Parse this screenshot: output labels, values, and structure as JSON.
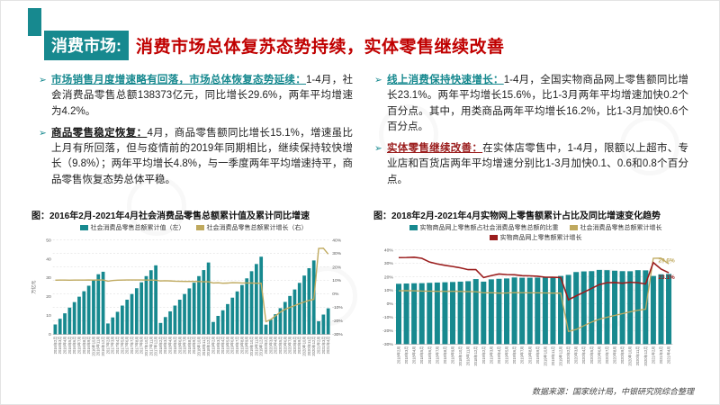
{
  "header": {
    "tag": "消费市场:",
    "title": "消费市场总体复苏态势持续，实体零售继续改善"
  },
  "icons": {
    "bullet_icon": "➢"
  },
  "bullets": {
    "left": [
      {
        "head": "市场销售月度增速略有回落，市场总体恢复态势延续：",
        "body": "1-4月，社会消费品零售总额138373亿元，同比增长29.6%，两年平均增速为4.2%。"
      },
      {
        "head": "商品零售稳定恢复：",
        "body": "4月，商品零售额同比增长15.1%，增速虽比上月有所回落，但与疫情前的2019年同期相比，继续保持较快增长（9.8%）；两年平均增长4.8%，与一季度两年平均增速持平，商品零售恢复态势总体平稳。"
      }
    ],
    "right": [
      {
        "head": "线上消费保持快速增长：",
        "body": "1-4月，全国实物商品网上零售额同比增长23.1%。两年平均增长15.6%，比1-3月两年平均增速加快0.2个百分点。其中，用类商品两年平均增长16.2%，比1-3月加快0.6个百分点。"
      },
      {
        "head": "实体零售继续改善：",
        "body": "在实体店零售中，1-4月，限额以上超市、专业店和百货店两年平均增速分别比1-3月加快0.1、0.6和0.8个百分点。"
      }
    ]
  },
  "footer": {
    "source": "数据来源：国家统计局，中银研究院综合整理"
  },
  "colors": {
    "teal": "#17898f",
    "gold": "#bfa95e",
    "red": "#9a1c1c",
    "title_red": "#c00000"
  },
  "chart_data": [
    {
      "type": "bar",
      "title": "图：2016年2月-2021年4月社会消费品零售总额累计值及累计同比增速",
      "legend": [
        "社会消费品零售总额累计值（左）",
        "社会消费品零售总额累计增长（右）"
      ],
      "unit": "万亿元",
      "bar_axis": {
        "range": [
          0,
          50
        ],
        "ticks": [
          0,
          10,
          20,
          30,
          40,
          50
        ]
      },
      "line_axis": {
        "range": [
          -30,
          40
        ],
        "ticks": [
          40,
          30,
          20,
          10,
          0,
          -10,
          -20,
          -30
        ]
      },
      "categories": [
        "2016年2月",
        "2016年3月",
        "2016年4月",
        "2016年5月",
        "2016年6月",
        "2016年7月",
        "2016年8月",
        "2016年9月",
        "2016年10月",
        "2016年11月",
        "2016年12月",
        "2017年2月",
        "2017年3月",
        "2017年4月",
        "2017年5月",
        "2017年6月",
        "2017年7月",
        "2017年8月",
        "2017年9月",
        "2017年10月",
        "2017年11月",
        "2017年12月",
        "2018年2月",
        "2018年3月",
        "2018年4月",
        "2018年5月",
        "2018年6月",
        "2018年7月",
        "2018年8月",
        "2018年9月",
        "2018年10月",
        "2018年11月",
        "2018年12月",
        "2019年2月",
        "2019年3月",
        "2019年4月",
        "2019年5月",
        "2019年6月",
        "2019年7月",
        "2019年8月",
        "2019年9月",
        "2019年10月",
        "2019年11月",
        "2019年12月",
        "2020年2月",
        "2020年3月",
        "2020年4月",
        "2020年5月",
        "2020年6月",
        "2020年7月",
        "2020年8月",
        "2020年9月",
        "2020年10月",
        "2020年11月",
        "2020年12月",
        "2021年2月",
        "2021年3月",
        "2021年4月"
      ],
      "bars": [
        5.3,
        8.3,
        11.2,
        14.2,
        17.1,
        20.0,
        22.9,
        25.8,
        28.9,
        31.9,
        33.2,
        5.8,
        9.0,
        12.0,
        15.3,
        18.4,
        21.4,
        24.5,
        27.6,
        30.9,
        34.0,
        36.6,
        6.1,
        9.2,
        12.2,
        15.3,
        18.4,
        21.4,
        24.4,
        27.4,
        30.9,
        34.1,
        38.1,
        6.6,
        9.8,
        12.8,
        16.1,
        19.5,
        22.8,
        26.2,
        29.7,
        33.5,
        37.3,
        41.2,
        5.2,
        7.9,
        10.7,
        13.9,
        17.2,
        20.4,
        23.8,
        27.3,
        31.2,
        35.1,
        39.2,
        7.0,
        10.5,
        13.8
      ],
      "line": {
        "name": "社会消费品零售总额累计增长（右）",
        "color": "gold",
        "values": [
          10.2,
          10.3,
          10.3,
          10.2,
          10.3,
          10.3,
          10.3,
          10.4,
          10.3,
          10.4,
          10.4,
          9.5,
          10.0,
          10.2,
          10.3,
          10.4,
          10.4,
          10.4,
          10.4,
          10.3,
          10.3,
          10.2,
          9.7,
          9.8,
          9.7,
          9.5,
          9.4,
          9.3,
          9.3,
          9.3,
          9.2,
          9.1,
          9.0,
          8.2,
          8.3,
          8.0,
          8.1,
          8.4,
          8.3,
          8.2,
          8.2,
          8.1,
          8.0,
          8.0,
          -20.5,
          -19.0,
          -16.2,
          -13.5,
          -11.4,
          -9.9,
          -8.6,
          -7.2,
          -5.9,
          -4.8,
          -3.9,
          33.8,
          33.9,
          29.6
        ]
      }
    },
    {
      "type": "bar",
      "title": "图：2018年2月-2021年4月实物网上零售额累计占比及同比增速变化趋势",
      "legend": [
        "实物商品网上零售额占社会消费品零售总额的比重",
        "社会消费品零售总额累计增长",
        "实物商品网上零售额累计增长"
      ],
      "axis": {
        "range": [
          -30,
          40
        ],
        "ticks": [
          40,
          30,
          20,
          10,
          0,
          -10,
          -20,
          -30
        ]
      },
      "categories": [
        "2018年2月",
        "2018年3月",
        "2018年4月",
        "2018年5月",
        "2018年6月",
        "2018年7月",
        "2018年8月",
        "2018年9月",
        "2018年10月",
        "2018年11月",
        "2018年12月",
        "2019年2月",
        "2019年3月",
        "2019年4月",
        "2019年5月",
        "2019年6月",
        "2019年7月",
        "2019年8月",
        "2019年9月",
        "2019年10月",
        "2019年11月",
        "2019年12月",
        "2020年2月",
        "2020年3月",
        "2020年4月",
        "2020年5月",
        "2020年6月",
        "2020年7月",
        "2020年8月",
        "2020年9月",
        "2020年10月",
        "2020年11月",
        "2020年12月",
        "2021年2月",
        "2021年3月",
        "2021年4月"
      ],
      "bars": [
        14.9,
        15.1,
        15.3,
        15.4,
        15.6,
        15.8,
        16.0,
        16.2,
        16.5,
        16.8,
        18.4,
        16.5,
        18.2,
        18.6,
        18.9,
        19.6,
        19.4,
        19.4,
        19.5,
        19.5,
        20.0,
        20.7,
        21.5,
        23.6,
        24.1,
        24.3,
        25.2,
        25.0,
        24.6,
        24.3,
        24.2,
        25.0,
        24.9,
        20.7,
        21.9,
        22.2
      ],
      "series": [
        {
          "name": "社会消费品零售总额累计增长",
          "color": "gold",
          "values": [
            9.7,
            9.8,
            9.7,
            9.5,
            9.4,
            9.3,
            9.3,
            9.3,
            9.2,
            9.1,
            9.0,
            8.2,
            8.3,
            8.0,
            8.1,
            8.4,
            8.3,
            8.2,
            8.2,
            8.1,
            8.0,
            8.0,
            -20.5,
            -19.0,
            -16.2,
            -13.5,
            -11.4,
            -9.9,
            -8.6,
            -7.2,
            -5.9,
            -4.8,
            -3.9,
            33.8,
            33.9,
            29.6
          ]
        },
        {
          "name": "实物商品网上零售额累计增长",
          "color": "red",
          "values": [
            34.3,
            34.4,
            34.6,
            33.8,
            31.0,
            29.6,
            28.6,
            27.7,
            26.7,
            25.4,
            25.4,
            19.5,
            21.0,
            22.2,
            21.7,
            21.6,
            20.9,
            20.8,
            20.5,
            19.8,
            19.7,
            19.5,
            3.0,
            5.9,
            8.6,
            11.5,
            14.3,
            15.7,
            15.8,
            15.3,
            16.0,
            15.7,
            14.8,
            30.6,
            25.8,
            23.1
          ]
        }
      ],
      "annotations": [
        {
          "text": "29.6%",
          "value": 29.6,
          "color": "gold",
          "dy": -2
        },
        {
          "text": "23.1%",
          "value": 23.1,
          "color": "red",
          "dy": 7
        }
      ]
    }
  ]
}
